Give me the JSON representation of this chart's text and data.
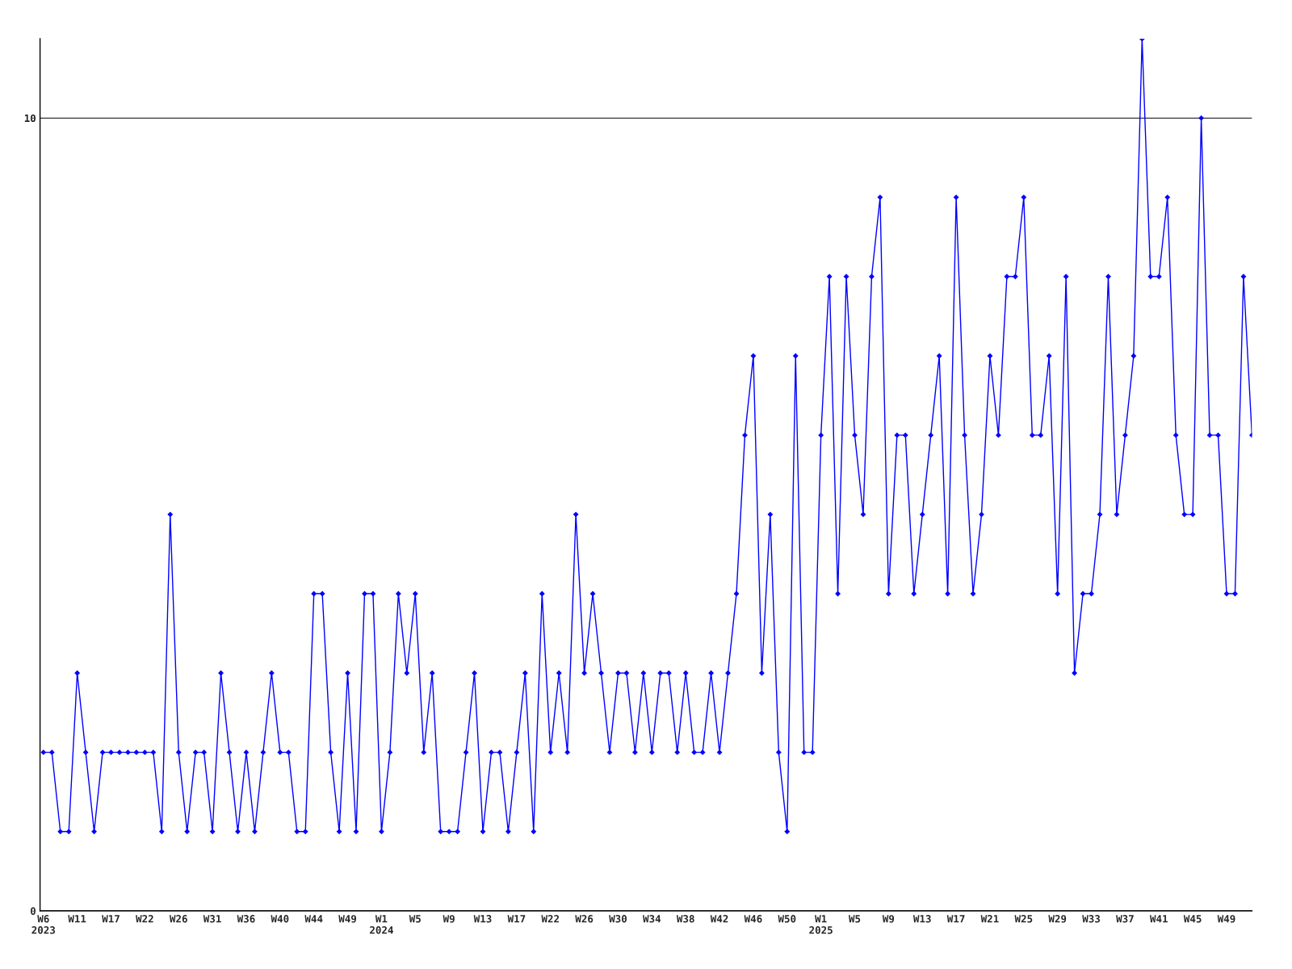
{
  "chart_data": {
    "type": "line",
    "categories": [
      "W6\n2023",
      null,
      null,
      null,
      "W11",
      null,
      null,
      null,
      "W17",
      null,
      null,
      null,
      "W22",
      null,
      null,
      null,
      "W26",
      null,
      null,
      null,
      "W31",
      null,
      null,
      null,
      "W36",
      null,
      null,
      null,
      "W40",
      null,
      null,
      null,
      "W44",
      null,
      null,
      null,
      "W49",
      null,
      null,
      null,
      "W1\n2024",
      null,
      null,
      null,
      "W5",
      null,
      null,
      null,
      "W9",
      null,
      null,
      null,
      "W13",
      null,
      null,
      null,
      "W17",
      null,
      null,
      null,
      "W22",
      null,
      null,
      null,
      "W26",
      null,
      null,
      null,
      "W30",
      null,
      null,
      null,
      "W34",
      null,
      null,
      null,
      "W38",
      null,
      null,
      null,
      "W42",
      null,
      null,
      null,
      "W46",
      null,
      null,
      null,
      "W50",
      null,
      null,
      null,
      "W1\n2025",
      null,
      null,
      null,
      "W5",
      null,
      null,
      null,
      "W9",
      null,
      null,
      null,
      "W13",
      null,
      null,
      null,
      "W17",
      null,
      null,
      null,
      "W21",
      null,
      null,
      null,
      "W25",
      null,
      null,
      null,
      "W29",
      null,
      null,
      null,
      "W33",
      null,
      null,
      null,
      "W37",
      null,
      null,
      null,
      "W41",
      null,
      null,
      null,
      "W45",
      null,
      null,
      null,
      "W49",
      null,
      null,
      null
    ],
    "series": [
      {
        "color": "#0000ff",
        "values": [
          2,
          2,
          1,
          1,
          3,
          2,
          1,
          2,
          2,
          2,
          2,
          2,
          2,
          2,
          1,
          5,
          2,
          1,
          2,
          2,
          1,
          3,
          2,
          1,
          2,
          1,
          2,
          3,
          2,
          2,
          1,
          1,
          4,
          4,
          2,
          1,
          3,
          1,
          4,
          4,
          1,
          2,
          4,
          3,
          4,
          2,
          3,
          1,
          1,
          1,
          2,
          3,
          1,
          2,
          2,
          1,
          2,
          3,
          1,
          4,
          2,
          3,
          2,
          5,
          3,
          4,
          3,
          2,
          3,
          3,
          2,
          3,
          2,
          3,
          3,
          2,
          3,
          2,
          2,
          3,
          2,
          3,
          4,
          6,
          7,
          3,
          5,
          2,
          1,
          7,
          2,
          2,
          6,
          8,
          4,
          8,
          6,
          5,
          8,
          9,
          4,
          6,
          6,
          4,
          5,
          6,
          7,
          4,
          9,
          6,
          4,
          5,
          7,
          6,
          8,
          8,
          9,
          6,
          6,
          7,
          4,
          8,
          3,
          4,
          4,
          5,
          8,
          5,
          6,
          7,
          11,
          8,
          8,
          9,
          6,
          5,
          5,
          10,
          6,
          6,
          4,
          4,
          8,
          6
        ]
      }
    ],
    "ylim": [
      0,
      11
    ],
    "yticks": [
      0,
      10
    ],
    "grid": "y",
    "marker": "diamond",
    "line_style": "solid"
  }
}
